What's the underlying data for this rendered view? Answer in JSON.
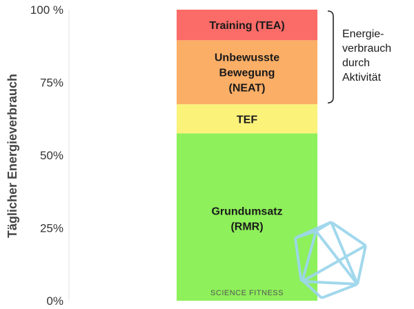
{
  "chart_data": {
    "type": "bar",
    "stacked": true,
    "ylabel": "Täglicher Energieverbrauch",
    "ylim": [
      0,
      100
    ],
    "yticks": [
      {
        "value": 0,
        "label": "0%"
      },
      {
        "value": 25,
        "label": "25%"
      },
      {
        "value": 50,
        "label": "50%"
      },
      {
        "value": 75,
        "label": "75%"
      },
      {
        "value": 100,
        "label": "100 %"
      }
    ],
    "grid": false,
    "segments": [
      {
        "lines": [
          "Grundumsatz",
          "(RMR)"
        ],
        "value": 57.5,
        "color": "#8ef05a"
      },
      {
        "lines": [
          "TEF"
        ],
        "value": 10,
        "color": "#fbf27a"
      },
      {
        "lines": [
          "Unbewusste",
          "Bewegung",
          "(NEAT)"
        ],
        "value": 22,
        "color": "#fbae66"
      },
      {
        "lines": [
          "Training (TEA)"
        ],
        "value": 10.5,
        "color": "#fb6b68"
      }
    ],
    "annotation": {
      "lines": [
        "Energie-",
        "verbrauch",
        "durch",
        "Aktivität"
      ],
      "spans_segments": [
        "Unbewusste Bewegung (NEAT)",
        "Training (TEA)"
      ]
    }
  },
  "watermark": {
    "text": "SCIENCE FITNESS",
    "icon": "icosahedron-logo-icon",
    "color": "#9cd6ec"
  }
}
